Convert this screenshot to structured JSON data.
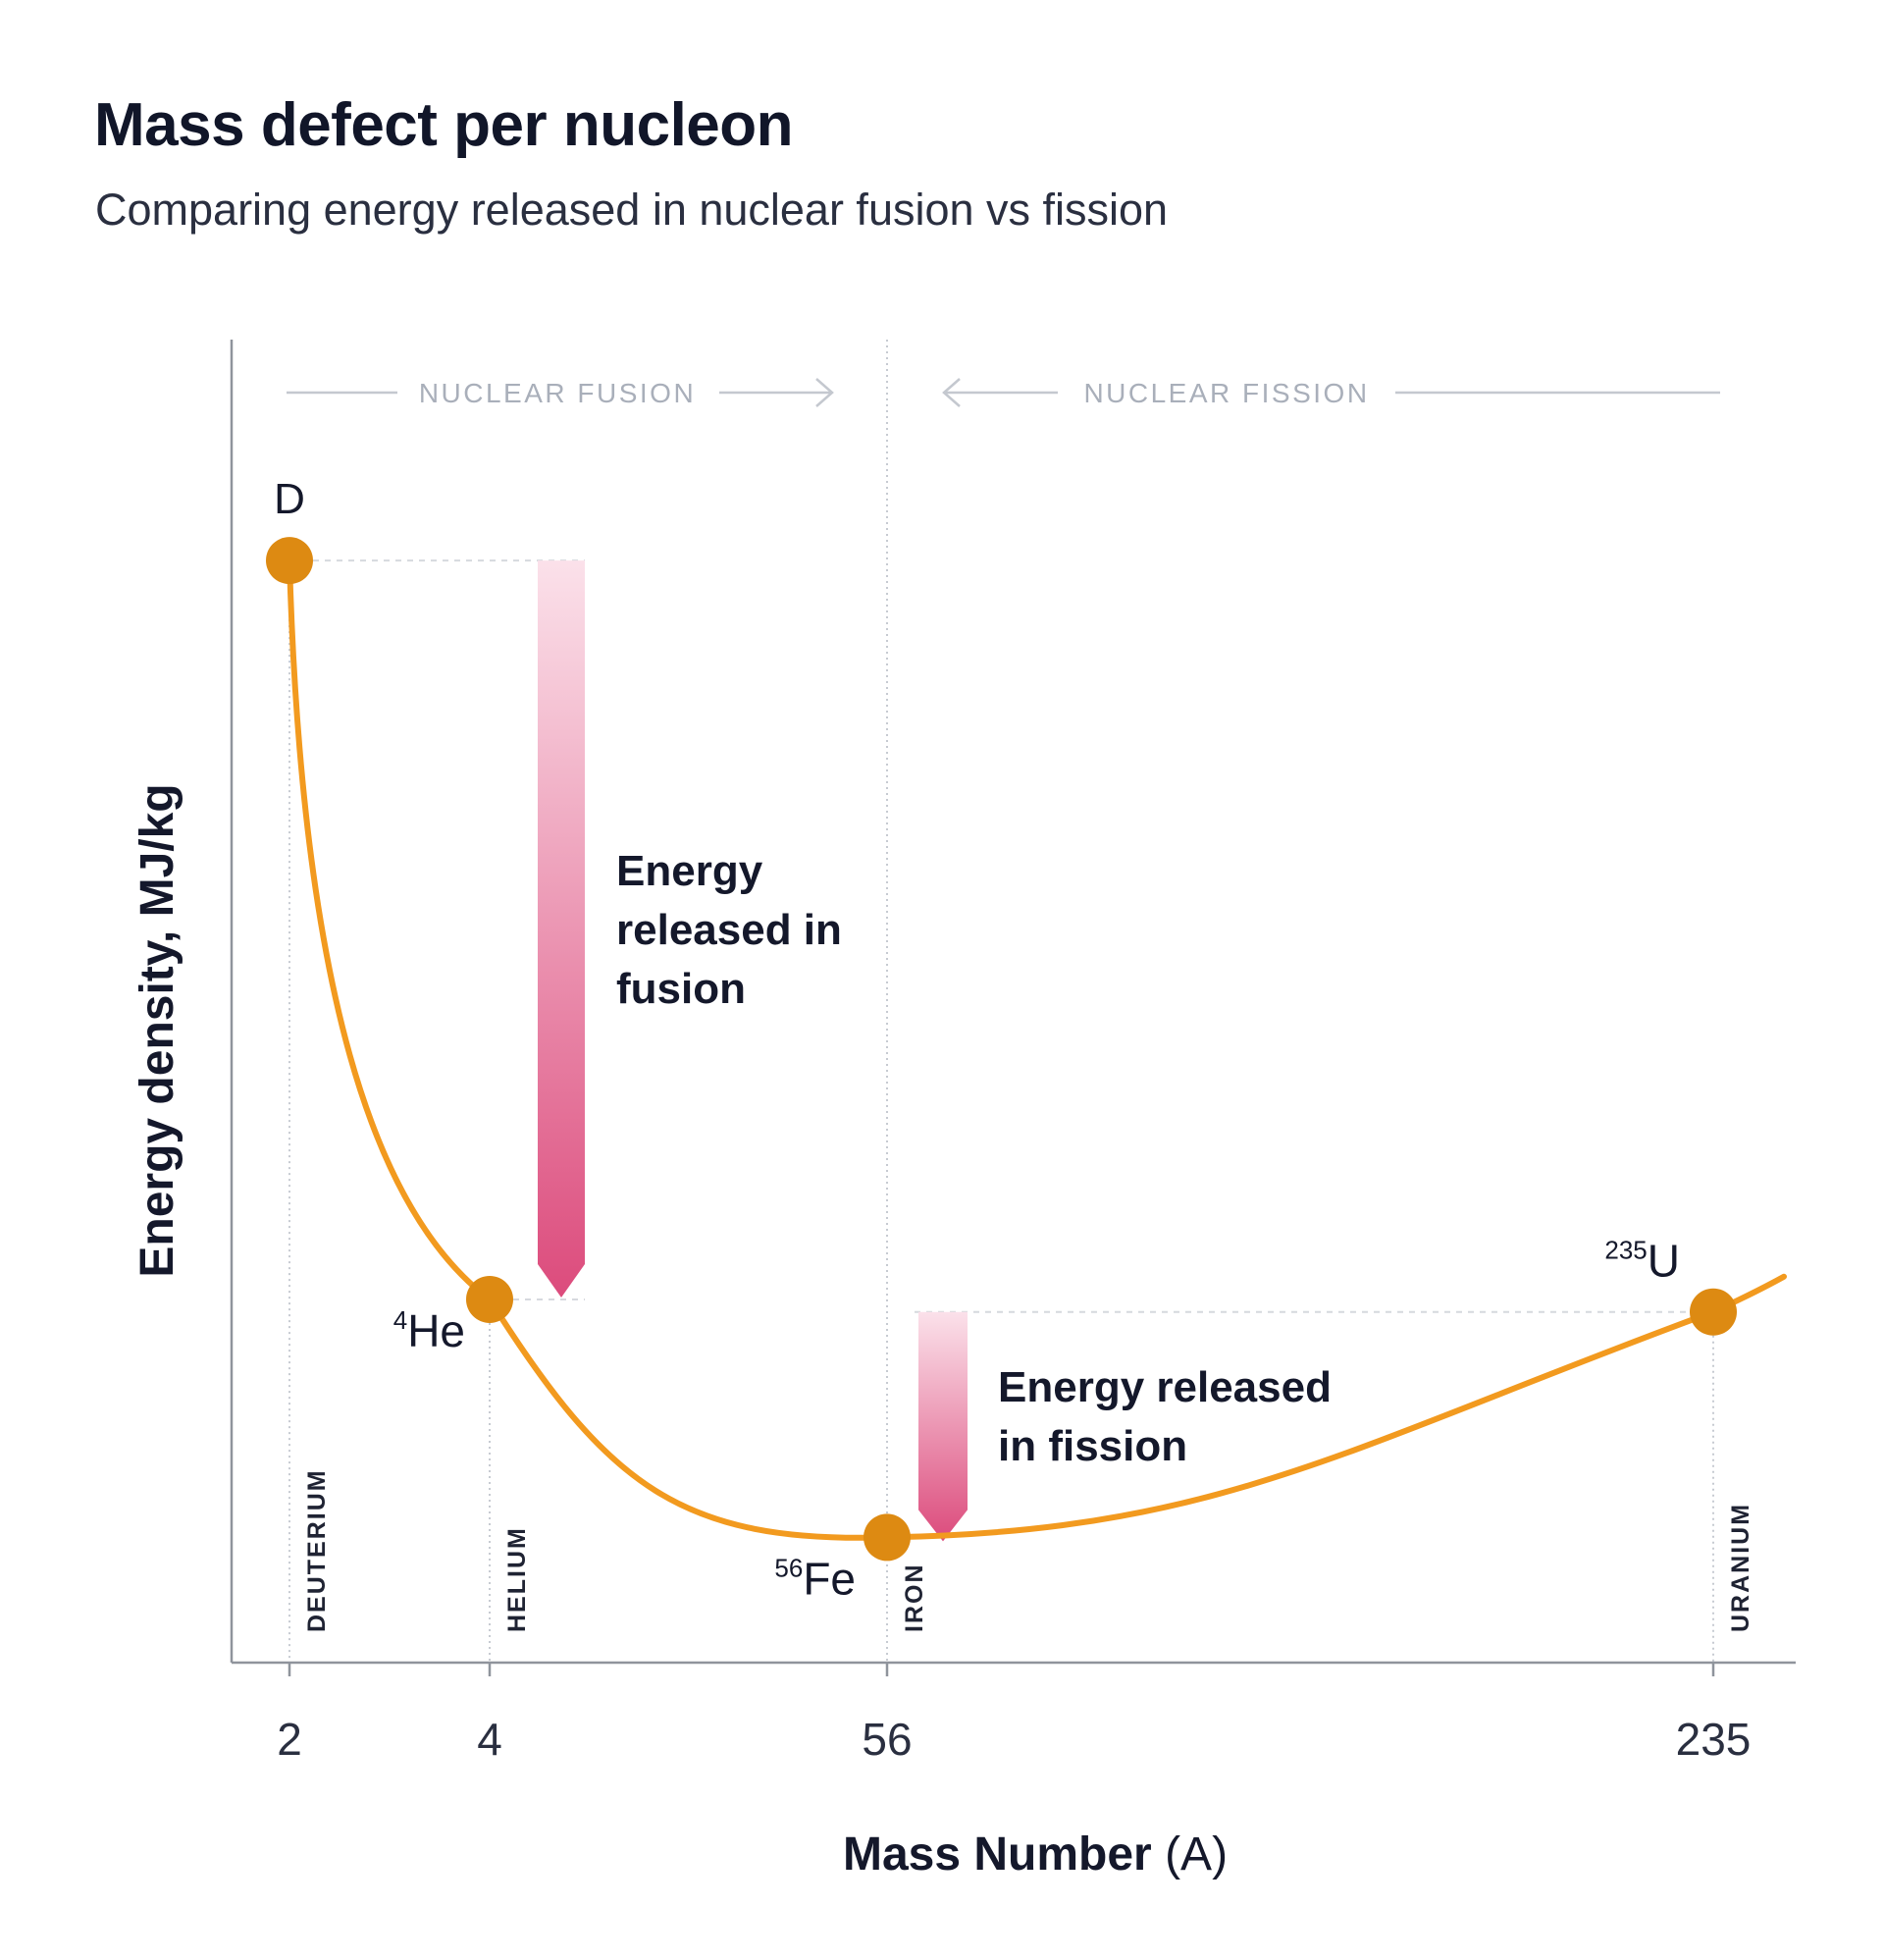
{
  "title": "Mass defect per nucleon",
  "subtitle": "Comparing energy released in nuclear fusion vs fission",
  "colors": {
    "curve": "#f29a1f",
    "point": "#dd8a12",
    "arrow_top": "#fbe1ea",
    "arrow_bottom": "#dc4b7c",
    "region_text": "#a9afba",
    "axis": "#8f949c",
    "text": "#14182b"
  },
  "chart_data": {
    "type": "line",
    "title": "Mass defect per nucleon",
    "subtitle": "Comparing energy released in nuclear fusion vs fission",
    "xlabel_bold": "Mass Number",
    "xlabel_unit": "(A)",
    "ylabel": "Energy density, MJ/kg",
    "x_ticks": [
      "2",
      "4",
      "56",
      "235"
    ],
    "y_ticks": [],
    "grid": false,
    "legend": "none",
    "points": [
      {
        "x": "2",
        "marker": "D",
        "element": "DEUTERIUM",
        "relative_y": 0.88
      },
      {
        "x": "4",
        "marker_sup": "4",
        "marker_main": "He",
        "element": "HELIUM",
        "relative_y": 0.29
      },
      {
        "x": "56",
        "marker_sup": "56",
        "marker_main": "Fe",
        "element": "IRON",
        "relative_y": 0.1
      },
      {
        "x": "235",
        "marker_sup": "235",
        "marker_main": "U",
        "element": "URANIUM",
        "relative_y": 0.28
      }
    ],
    "regions": [
      {
        "label": "NUCLEAR FUSION",
        "direction": "right"
      },
      {
        "label": "NUCLEAR FISSION",
        "direction": "left"
      }
    ],
    "annotations": [
      {
        "name": "fusion-energy",
        "lines": [
          "Energy",
          "released in",
          "fusion"
        ],
        "from_x": "2",
        "to_x": "4"
      },
      {
        "name": "fission-energy",
        "lines": [
          "Energy released",
          "in fission"
        ],
        "from_x": "235",
        "to_x": "56"
      }
    ]
  }
}
